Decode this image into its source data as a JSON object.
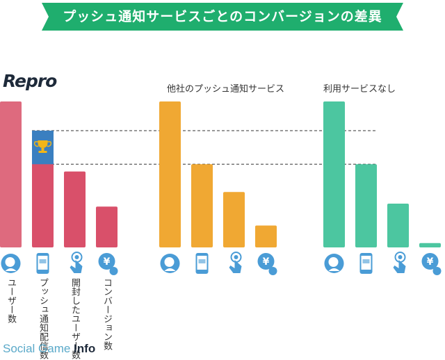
{
  "title": "プッシュ通知サービスごとのコンバージョンの差異",
  "watermark": {
    "part1": "Social Game ",
    "part2": "Info"
  },
  "colors": {
    "banner": "#1fae6e",
    "repro": "#d9506a",
    "repro_top": "#de6a7e",
    "highlight": "#3a7fc0",
    "other": "#f0a833",
    "none": "#4cc6a0",
    "icon": "#4a9cd6"
  },
  "chart_data": [
    {
      "type": "bar",
      "group_label": "Repro",
      "categories": [
        "ユーザー数",
        "プッシュ通知配信数",
        "開封したユーザー数",
        "コンバージョン数"
      ],
      "values": [
        100,
        80,
        52,
        28
      ],
      "highlight_from": 57,
      "ylim": [
        0,
        100
      ]
    },
    {
      "type": "bar",
      "group_label": "他社のプッシュ通知サービス",
      "categories": [
        "ユーザー数",
        "プッシュ通知配信数",
        "開封したユーザー数",
        "コンバージョン数"
      ],
      "values": [
        100,
        57,
        38,
        15
      ],
      "ylim": [
        0,
        100
      ]
    },
    {
      "type": "bar",
      "group_label": "利用サービスなし",
      "categories": [
        "ユーザー数",
        "プッシュ通知配信数",
        "開封したユーザー数",
        "コンバージョン数"
      ],
      "values": [
        100,
        57,
        30,
        3
      ],
      "ylim": [
        0,
        100
      ]
    }
  ],
  "icons": [
    "user-icon",
    "phone-icon",
    "tap-icon",
    "yen-icon"
  ]
}
